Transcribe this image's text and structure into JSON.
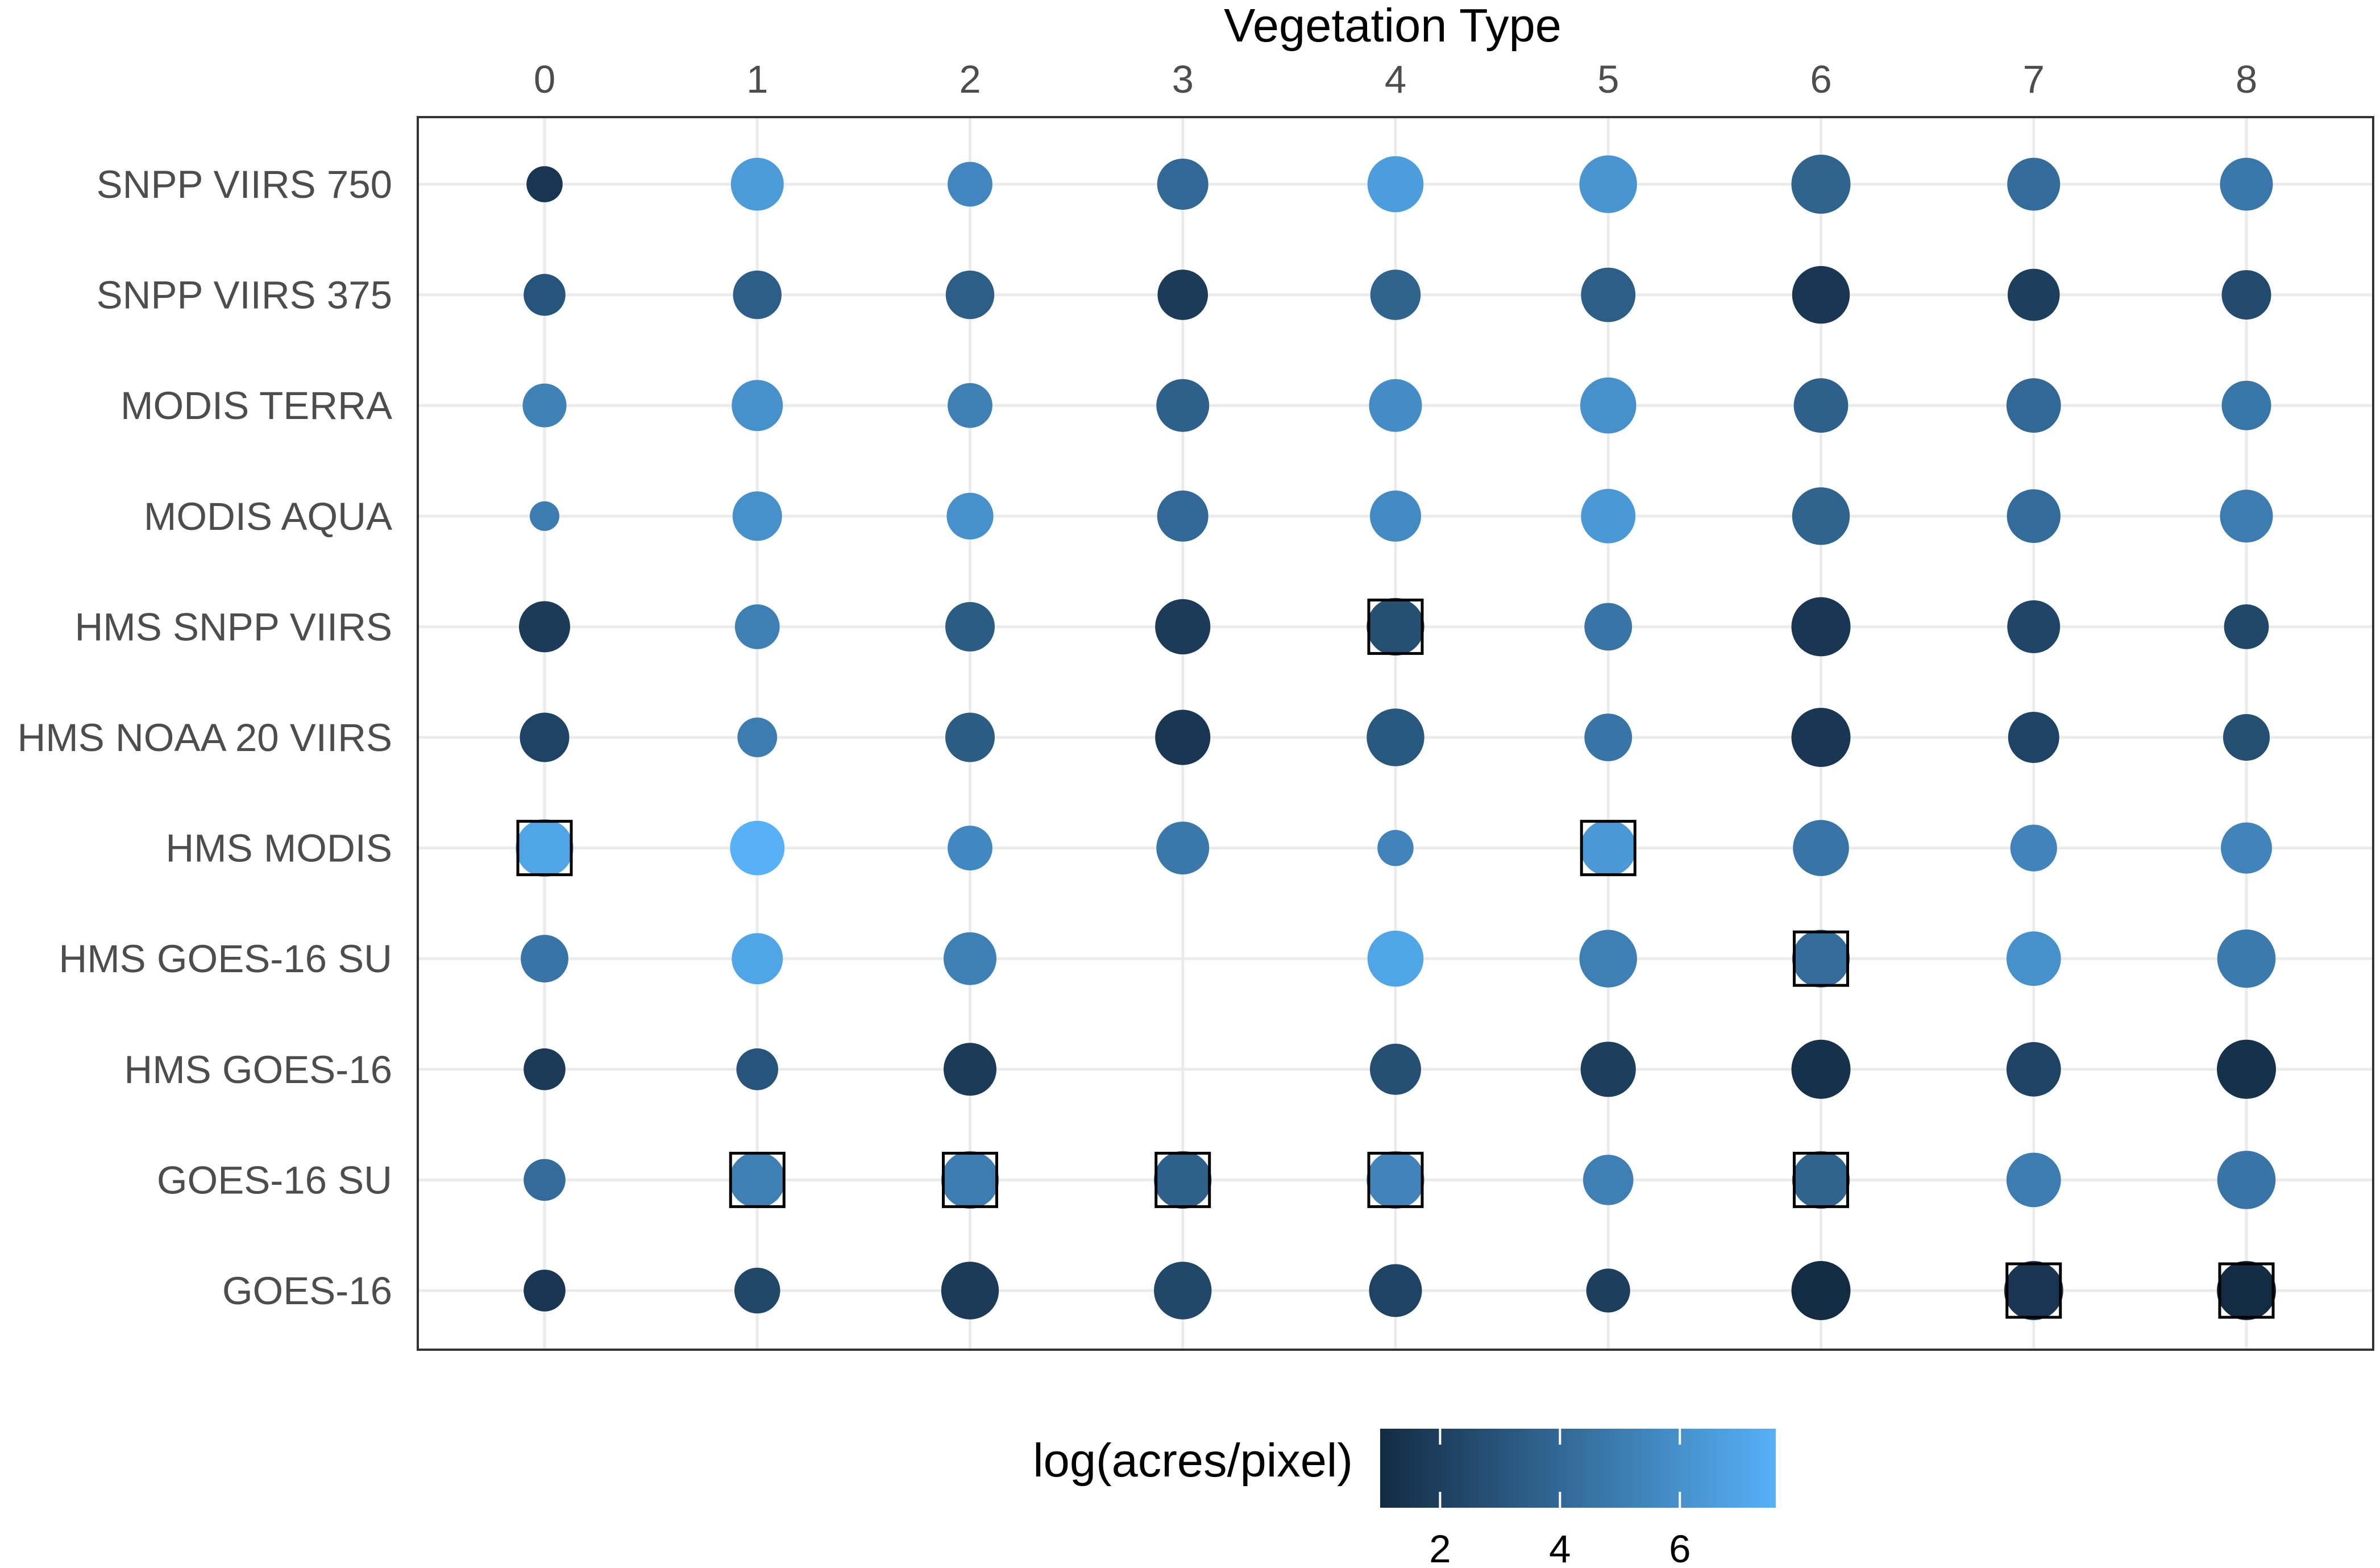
{
  "chart_data": {
    "type": "scatter",
    "subtype": "bubble-grid",
    "xlabel": "Vegetation Type",
    "x_axis_position": "top",
    "ylabel": "",
    "x": [
      0,
      1,
      2,
      3,
      4,
      5,
      6,
      7,
      8
    ],
    "categories": [
      "SNPP VIIRS 750",
      "SNPP VIIRS 375",
      "MODIS TERRA",
      "MODIS AQUA",
      "HMS SNPP VIIRS",
      "HMS NOAA 20 VIIRS",
      "HMS MODIS",
      "HMS GOES-16 SU",
      "HMS GOES-16",
      "GOES-16 SU",
      "GOES-16"
    ],
    "grid": true,
    "legend": {
      "title": "log(acres/pixel)",
      "placement": "bottom",
      "ticks": [
        2,
        4,
        6
      ],
      "range": [
        1,
        7.6
      ],
      "low_color": "#132B43",
      "high_color": "#56B1F7"
    },
    "series": [
      {
        "y": "SNPP VIIRS 750",
        "values": [
          1.5,
          6.5,
          5.5,
          4.0,
          6.6,
          6.2,
          3.8,
          4.2,
          4.8
        ],
        "sizes": [
          1.5,
          3.2,
          2.3,
          3.0,
          3.6,
          3.8,
          4.0,
          3.2,
          3.2
        ]
      },
      {
        "y": "SNPP VIIRS 375",
        "values": [
          3.0,
          3.5,
          3.5,
          1.8,
          3.8,
          3.5,
          1.6,
          2.0,
          2.6
        ],
        "sizes": [
          2.0,
          2.7,
          2.7,
          2.9,
          2.9,
          3.4,
          3.8,
          3.1,
          2.8
        ]
      },
      {
        "y": "MODIS TERRA",
        "values": [
          5.3,
          6.0,
          5.2,
          3.6,
          5.8,
          6.0,
          3.6,
          4.0,
          4.7
        ],
        "sizes": [
          2.2,
          3.0,
          2.3,
          3.2,
          3.2,
          3.6,
          3.4,
          3.4,
          2.8
        ]
      },
      {
        "y": "MODIS AQUA",
        "values": [
          5.0,
          6.0,
          6.0,
          4.0,
          5.7,
          6.4,
          3.8,
          4.2,
          5.0
        ],
        "sizes": [
          1.0,
          2.8,
          2.5,
          3.0,
          3.0,
          3.4,
          3.8,
          3.3,
          3.2
        ]
      },
      {
        "y": "HMS SNPP VIIRS",
        "values": [
          1.8,
          5.2,
          3.4,
          1.8,
          2.8,
          4.6,
          1.6,
          2.3,
          2.4
        ],
        "sizes": [
          3.0,
          2.3,
          2.8,
          3.5,
          3.8,
          2.6,
          4.0,
          3.2,
          2.3
        ]
      },
      {
        "y": "HMS NOAA 20 VIIRS",
        "values": [
          2.2,
          5.0,
          3.4,
          1.6,
          3.2,
          4.6,
          1.6,
          2.2,
          2.8
        ],
        "sizes": [
          2.8,
          1.8,
          2.8,
          3.5,
          3.8,
          2.6,
          4.0,
          3.0,
          2.5
        ]
      },
      {
        "y": "HMS MODIS",
        "values": [
          7.0,
          7.6,
          5.6,
          4.8,
          5.4,
          6.4,
          4.6,
          5.4,
          5.4
        ],
        "sizes": [
          3.8,
          3.4,
          2.3,
          3.2,
          1.5,
          3.6,
          3.6,
          2.5,
          3.0
        ]
      },
      {
        "y": "HMS GOES-16 SU",
        "values": [
          4.6,
          7.0,
          5.2,
          null,
          7.0,
          5.2,
          4.2,
          6.0,
          4.9
        ],
        "sizes": [
          2.6,
          3.0,
          3.2,
          null,
          3.6,
          3.8,
          3.8,
          3.4,
          3.9
        ]
      },
      {
        "y": "HMS GOES-16",
        "values": [
          1.8,
          3.0,
          1.8,
          null,
          2.8,
          2.0,
          1.3,
          2.2,
          1.3
        ],
        "sizes": [
          2.0,
          2.0,
          3.2,
          null,
          3.0,
          3.5,
          4.0,
          3.4,
          4.0
        ]
      },
      {
        "y": "GOES-16 SU",
        "values": [
          4.2,
          5.2,
          5.0,
          3.6,
          5.4,
          5.2,
          3.8,
          5.0,
          4.6
        ],
        "sizes": [
          2.0,
          3.6,
          3.8,
          3.8,
          3.8,
          2.9,
          3.8,
          3.4,
          3.9
        ]
      },
      {
        "y": "GOES-16",
        "values": [
          1.6,
          2.4,
          1.8,
          2.4,
          2.2,
          2.0,
          1.0,
          1.6,
          1.0
        ],
        "sizes": [
          2.0,
          2.4,
          3.8,
          3.8,
          3.2,
          2.2,
          4.0,
          4.0,
          4.0
        ]
      }
    ],
    "highlighted": [
      {
        "y": "HMS SNPP VIIRS",
        "x": 4
      },
      {
        "y": "HMS MODIS",
        "x": 0
      },
      {
        "y": "HMS MODIS",
        "x": 5
      },
      {
        "y": "HMS GOES-16 SU",
        "x": 6
      },
      {
        "y": "GOES-16 SU",
        "x": 1
      },
      {
        "y": "GOES-16 SU",
        "x": 2
      },
      {
        "y": "GOES-16 SU",
        "x": 3
      },
      {
        "y": "GOES-16 SU",
        "x": 4
      },
      {
        "y": "GOES-16 SU",
        "x": 6
      },
      {
        "y": "GOES-16",
        "x": 7
      },
      {
        "y": "GOES-16",
        "x": 8
      }
    ]
  }
}
